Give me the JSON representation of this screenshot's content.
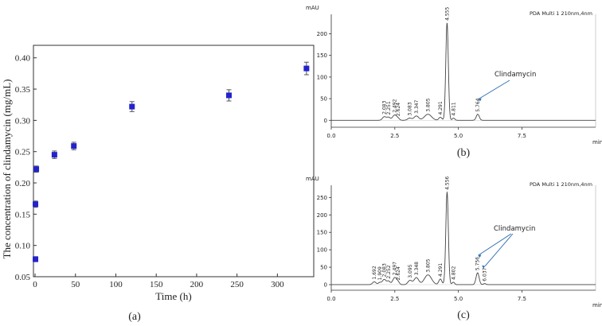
{
  "chart_data": [
    {
      "type": "scatter",
      "panel_label": "(a)",
      "xlabel": "Time (h)",
      "ylabel": "The concentration of clindamycin (mg/mL)",
      "xlim": [
        -2,
        345
      ],
      "ylim": [
        0.05,
        0.42
      ],
      "xticks": [
        0,
        50,
        100,
        150,
        200,
        250,
        300
      ],
      "yticks": [
        "0.05",
        "0.10",
        "0.15",
        "0.20",
        "0.25",
        "0.30",
        "0.35",
        "0.40"
      ],
      "marker_color": "#2323cc",
      "points": [
        {
          "x": 0.5,
          "y": 0.078,
          "err": 0.004
        },
        {
          "x": 0.5,
          "y": 0.166,
          "err": 0.005
        },
        {
          "x": 1.5,
          "y": 0.222,
          "err": 0.005
        },
        {
          "x": 24,
          "y": 0.245,
          "err": 0.006
        },
        {
          "x": 48,
          "y": 0.259,
          "err": 0.006
        },
        {
          "x": 120,
          "y": 0.322,
          "err": 0.008
        },
        {
          "x": 240,
          "y": 0.34,
          "err": 0.009
        },
        {
          "x": 336,
          "y": 0.383,
          "err": 0.01
        }
      ]
    },
    {
      "type": "line",
      "panel_label": "(b)",
      "y_unit": "mAU",
      "x_unit": "min",
      "legend": "PDA Multi 1 210nm,4nm",
      "annotation": "Clindamycin",
      "xlim": [
        0,
        10.4
      ],
      "ylim": [
        -16,
        245
      ],
      "xticks": [
        "0.0",
        "2.5",
        "5.0",
        "7.5"
      ],
      "yticks": [
        "0",
        "50",
        "100",
        "150",
        "200"
      ],
      "peaks": [
        {
          "rt": 2.083,
          "h": 8,
          "w": 0.07
        },
        {
          "rt": 2.251,
          "h": 7,
          "w": 0.07
        },
        {
          "rt": 2.492,
          "h": 12,
          "w": 0.08
        },
        {
          "rt": 2.624,
          "h": 4,
          "w": 0.06
        },
        {
          "rt": 3.083,
          "h": 5,
          "w": 0.08
        },
        {
          "rt": 3.347,
          "h": 10,
          "w": 0.09
        },
        {
          "rt": 3.805,
          "h": 14,
          "w": 0.14
        },
        {
          "rt": 4.291,
          "h": 7,
          "w": 0.06
        },
        {
          "rt": 4.555,
          "h": 225,
          "w": 0.05
        },
        {
          "rt": 4.811,
          "h": 5,
          "w": 0.05
        },
        {
          "rt": 5.764,
          "h": 14,
          "w": 0.06
        }
      ],
      "peak_labels": [
        "2.083",
        "2.251",
        "2.492",
        "2.624",
        "3.083",
        "3.347",
        "3.805",
        "4.291",
        "4.555",
        "4.811",
        "5.764"
      ]
    },
    {
      "type": "line",
      "panel_label": "(c)",
      "y_unit": "mAU",
      "x_unit": "min",
      "legend": "PDA Multi 1 210nm,4nm",
      "annotation": "Clindamycin",
      "xlim": [
        0,
        10.4
      ],
      "ylim": [
        -16,
        285
      ],
      "xticks": [
        "0.0",
        "2.5",
        "5.0",
        "7.5"
      ],
      "yticks": [
        "0",
        "50",
        "100",
        "150",
        "200",
        "250"
      ],
      "peaks": [
        {
          "rt": 1.692,
          "h": 8,
          "w": 0.07
        },
        {
          "rt": 1.909,
          "h": 6,
          "w": 0.06
        },
        {
          "rt": 2.083,
          "h": 15,
          "w": 0.07
        },
        {
          "rt": 2.252,
          "h": 10,
          "w": 0.06
        },
        {
          "rt": 2.497,
          "h": 20,
          "w": 0.08
        },
        {
          "rt": 2.624,
          "h": 6,
          "w": 0.06
        },
        {
          "rt": 3.095,
          "h": 12,
          "w": 0.08
        },
        {
          "rt": 3.348,
          "h": 20,
          "w": 0.09
        },
        {
          "rt": 3.805,
          "h": 28,
          "w": 0.14
        },
        {
          "rt": 4.291,
          "h": 16,
          "w": 0.06
        },
        {
          "rt": 4.556,
          "h": 265,
          "w": 0.05
        },
        {
          "rt": 4.802,
          "h": 7,
          "w": 0.05
        },
        {
          "rt": 5.756,
          "h": 34,
          "w": 0.06
        },
        {
          "rt": 6.037,
          "h": 3,
          "w": 0.05
        }
      ],
      "peak_labels": [
        "1.692",
        "1.909",
        "2.083",
        "2.252",
        "2.497",
        "2.624",
        "3.095",
        "3.348",
        "3.805",
        "4.291",
        "4.556",
        "4.802",
        "5.756",
        "6.037"
      ]
    }
  ]
}
